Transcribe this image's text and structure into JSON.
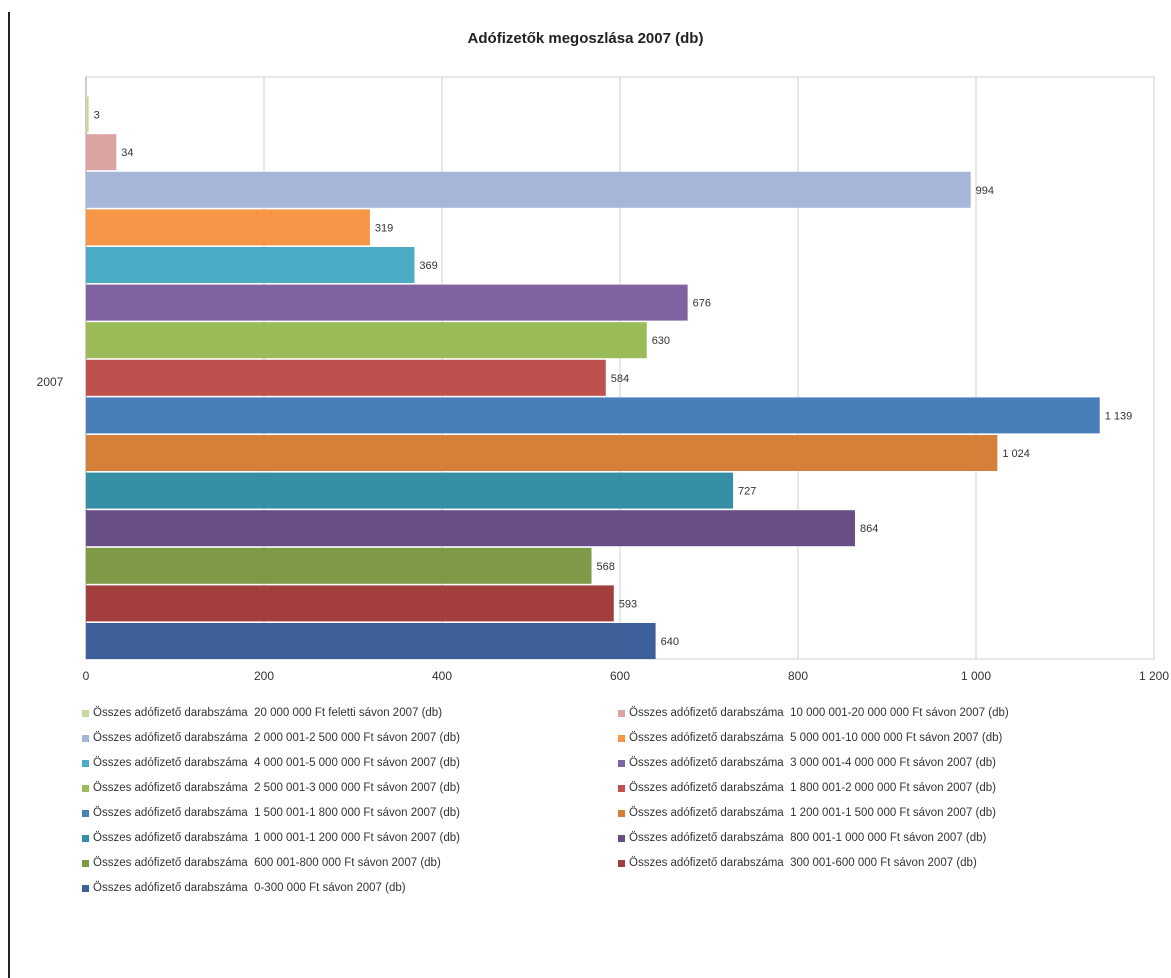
{
  "chart_data": {
    "type": "bar",
    "orientation": "horizontal",
    "title": "Adófizetők megoszlása 2007 (db)",
    "categories": [
      "2007"
    ],
    "xlim": [
      0,
      1200
    ],
    "xticks": [
      0,
      200,
      400,
      600,
      800,
      1000,
      1200
    ],
    "xtick_labels": [
      "0",
      "200",
      "400",
      "600",
      "800",
      "1 000",
      "1 200"
    ],
    "grid": true,
    "legend_position": "bottom",
    "series": [
      {
        "name": "Összes adófizető darabszáma  0-300 000 Ft sávon 2007 (db)",
        "values": [
          640
        ],
        "label": "640",
        "color": "#3d5f9a"
      },
      {
        "name": "Összes adófizető darabszáma  300 001-600 000 Ft sávon 2007 (db)",
        "values": [
          593
        ],
        "label": "593",
        "color": "#a23f3d"
      },
      {
        "name": "Összes adófizető darabszáma  600 001-800 000 Ft sávon 2007 (db)",
        "values": [
          568
        ],
        "label": "568",
        "color": "#7f9a46"
      },
      {
        "name": "Összes adófizető darabszáma  800 001-1 000 000 Ft sávon 2007 (db)",
        "values": [
          864
        ],
        "label": "864",
        "color": "#674e87"
      },
      {
        "name": "Összes adófizető darabszáma  1 000 001-1 200 000 Ft sávon 2007 (db)",
        "values": [
          727
        ],
        "label": "727",
        "color": "#368fa5"
      },
      {
        "name": "Összes adófizető darabszáma  1 200 001-1 500 000 Ft sávon 2007 (db)",
        "values": [
          1024
        ],
        "label": "1 024",
        "color": "#d57f38"
      },
      {
        "name": "Összes adófizető darabszáma  1 500 001-1 800 000 Ft sávon 2007 (db)",
        "values": [
          1139
        ],
        "label": "1 139",
        "color": "#4a7ebb"
      },
      {
        "name": "Összes adófizető darabszáma  1 800 001-2 000 000 Ft sávon 2007 (db)",
        "values": [
          584
        ],
        "label": "584",
        "color": "#c0504d"
      },
      {
        "name": "Összes adófizető darabszáma  2 500 001-3 000 000 Ft sávon 2007 (db)",
        "values": [
          630
        ],
        "label": "630",
        "color": "#9bbb59"
      },
      {
        "name": "Összes adófizető darabszáma  3 000 001-4 000 000 Ft sávon 2007 (db)",
        "values": [
          676
        ],
        "label": "676",
        "color": "#8064a2"
      },
      {
        "name": "Összes adófizető darabszáma  4 000 001-5 000 000 Ft sávon 2007 (db)",
        "values": [
          369
        ],
        "label": "369",
        "color": "#4bacc6"
      },
      {
        "name": "Összes adófizető darabszáma  5 000 001-10 000 000 Ft sávon 2007 (db)",
        "values": [
          319
        ],
        "label": "319",
        "color": "#f79646"
      },
      {
        "name": "Összes adófizető darabszáma  2 000 001-2 500 000 Ft sávon 2007 (db)",
        "values": [
          994
        ],
        "label": "994",
        "color": "#a5b6d9"
      },
      {
        "name": "Összes adófizető darabszáma  10 000 001-20 000 000 Ft sávon 2007 (db)",
        "values": [
          34
        ],
        "label": "34",
        "color": "#dba3a2"
      },
      {
        "name": "Összes adófizető darabszáma  20 000 000 Ft feletti sávon 2007 (db)",
        "values": [
          3
        ],
        "label": "3",
        "color": "#c6d9a0"
      }
    ],
    "legend_order": [
      14,
      13,
      12,
      11,
      10,
      9,
      8,
      7,
      6,
      5,
      4,
      3,
      2,
      1,
      0
    ]
  }
}
